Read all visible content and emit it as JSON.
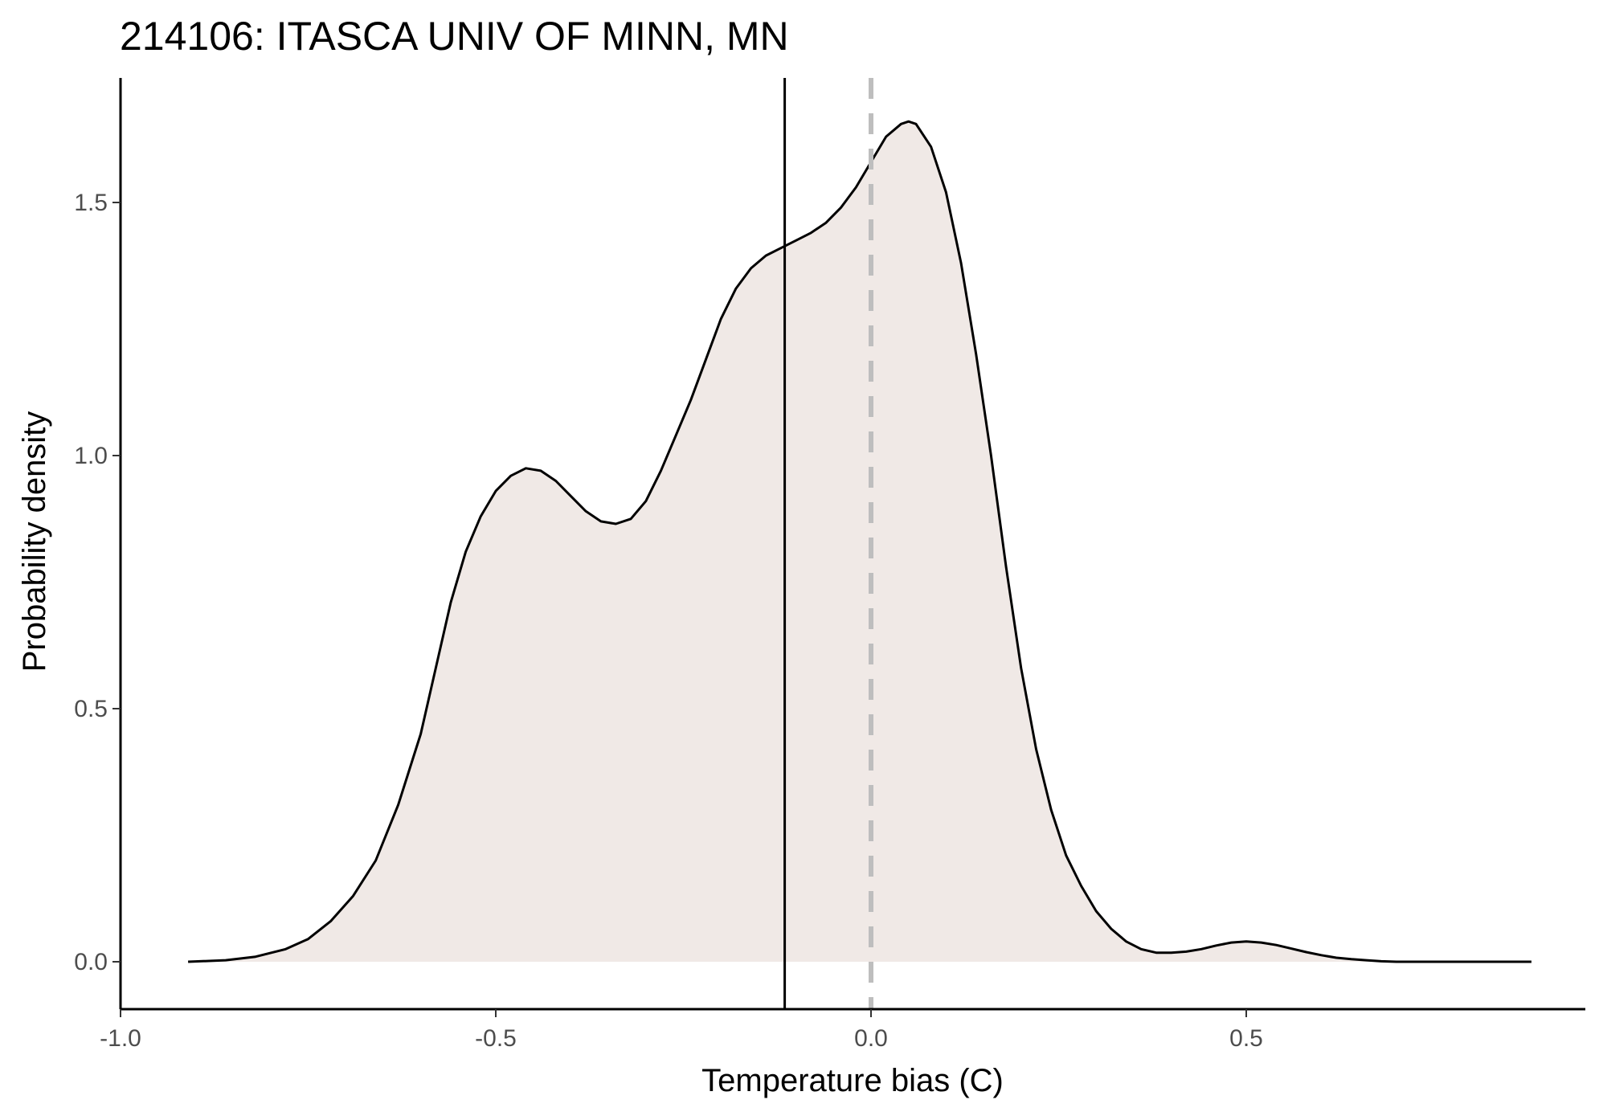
{
  "chart_data": {
    "type": "area",
    "title": "214106: ITASCA UNIV OF MINN, MN",
    "xlabel": "Temperature bias (C)",
    "ylabel": "Probability density",
    "xlim": [
      -1.0,
      0.95
    ],
    "ylim": [
      -0.085,
      1.75
    ],
    "x_ticks": [
      -1.0,
      -0.5,
      0.0,
      0.5
    ],
    "x_tick_labels": [
      "-1.0",
      "-0.5",
      "0.0",
      "0.5"
    ],
    "y_ticks": [
      0.0,
      0.5,
      1.0,
      1.5
    ],
    "y_tick_labels": [
      "0.0",
      "0.5",
      "1.0",
      "1.5"
    ],
    "grid": false,
    "series": [
      {
        "x": [
          -0.91,
          -0.86,
          -0.82,
          -0.78,
          -0.75,
          -0.72,
          -0.69,
          -0.66,
          -0.63,
          -0.6,
          -0.58,
          -0.56,
          -0.54,
          -0.52,
          -0.5,
          -0.48,
          -0.46,
          -0.44,
          -0.42,
          -0.4,
          -0.38,
          -0.36,
          -0.34,
          -0.32,
          -0.3,
          -0.28,
          -0.26,
          -0.24,
          -0.22,
          -0.2,
          -0.18,
          -0.16,
          -0.14,
          -0.12,
          -0.1,
          -0.08,
          -0.06,
          -0.04,
          -0.02,
          0.0,
          0.02,
          0.04,
          0.05,
          0.06,
          0.08,
          0.1,
          0.12,
          0.14,
          0.16,
          0.18,
          0.2,
          0.22,
          0.24,
          0.26,
          0.28,
          0.3,
          0.32,
          0.34,
          0.36,
          0.38,
          0.4,
          0.42,
          0.44,
          0.46,
          0.48,
          0.5,
          0.52,
          0.54,
          0.56,
          0.58,
          0.6,
          0.62,
          0.64,
          0.66,
          0.68,
          0.7,
          0.72,
          0.74,
          0.76,
          0.78,
          0.8,
          0.82,
          0.84,
          0.86,
          0.88
        ],
        "y": [
          0.0,
          0.003,
          0.01,
          0.025,
          0.045,
          0.08,
          0.13,
          0.2,
          0.31,
          0.45,
          0.58,
          0.71,
          0.81,
          0.88,
          0.93,
          0.96,
          0.975,
          0.97,
          0.95,
          0.92,
          0.89,
          0.87,
          0.865,
          0.875,
          0.91,
          0.97,
          1.04,
          1.11,
          1.19,
          1.27,
          1.33,
          1.37,
          1.395,
          1.41,
          1.425,
          1.44,
          1.46,
          1.49,
          1.53,
          1.58,
          1.63,
          1.655,
          1.66,
          1.655,
          1.61,
          1.52,
          1.38,
          1.2,
          1.0,
          0.78,
          0.58,
          0.42,
          0.3,
          0.21,
          0.15,
          0.1,
          0.065,
          0.04,
          0.025,
          0.018,
          0.018,
          0.02,
          0.025,
          0.032,
          0.038,
          0.04,
          0.038,
          0.033,
          0.026,
          0.019,
          0.013,
          0.008,
          0.005,
          0.003,
          0.001,
          0.0,
          0.0,
          0.0,
          0.0,
          0.0,
          0.0,
          0.0,
          0.0,
          0.0,
          0.0
        ]
      }
    ],
    "vlines": [
      {
        "x": -0.115,
        "style": "solid",
        "color": "#000000"
      },
      {
        "x": 0.0,
        "style": "dashed",
        "color": "#bebebe"
      }
    ],
    "colors": {
      "fill": "#f0e9e6",
      "line": "#000000"
    }
  }
}
